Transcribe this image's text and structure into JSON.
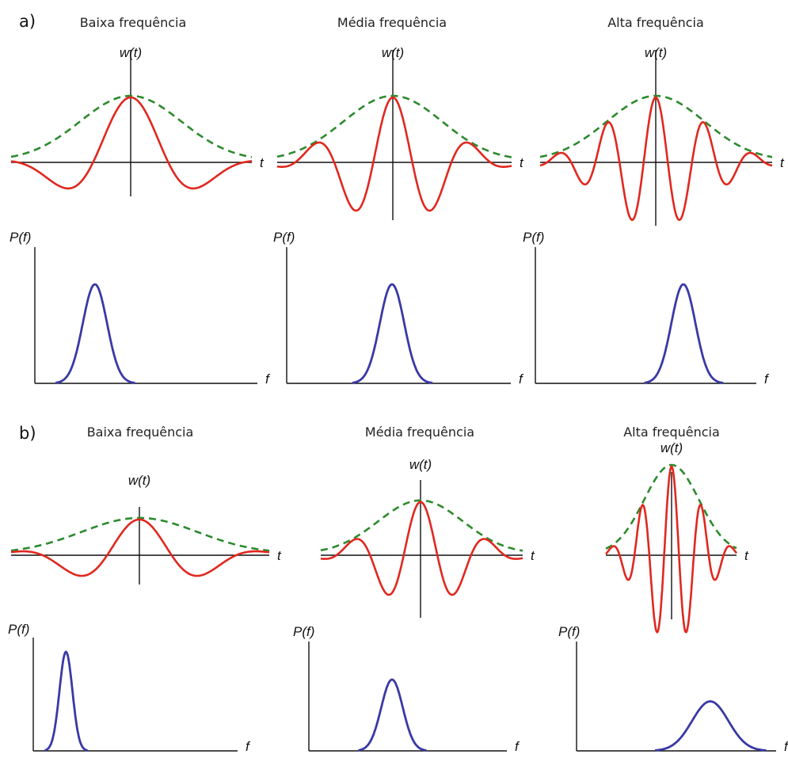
{
  "colors": {
    "wavelet": "#e0281f",
    "envelope": "#2d8a2d",
    "spectrum": "#3a39a6",
    "axis": "#111111"
  },
  "labels": {
    "wt": "w(t)",
    "t": "t",
    "pf": "P(f)",
    "f": "f"
  },
  "parts": [
    {
      "id": "a",
      "label": "a)",
      "panels": [
        {
          "title": "Baixa frequência",
          "cycles": 0.8,
          "env_width": 0.42,
          "amp": 1.0,
          "spectrum_peak": 0.27,
          "spectrum_width": 0.12,
          "spectrum_height": 1.0
        },
        {
          "title": "Média frequência",
          "cycles": 1.5,
          "env_width": 0.42,
          "amp": 1.0,
          "spectrum_peak": 0.47,
          "spectrum_width": 0.12,
          "spectrum_height": 1.0
        },
        {
          "title": "Alta frequência",
          "cycles": 2.4,
          "env_width": 0.42,
          "amp": 1.0,
          "spectrum_peak": 0.67,
          "spectrum_width": 0.12,
          "spectrum_height": 1.0
        }
      ]
    },
    {
      "id": "b",
      "label": "b)",
      "panels": [
        {
          "title": "Baixa frequência",
          "cycles": 1.0,
          "env_width": 0.45,
          "amp": 0.55,
          "spectrum_peak": 0.16,
          "spectrum_width": 0.07,
          "spectrum_height": 1.0
        },
        {
          "title": "Média frequência",
          "cycles": 1.5,
          "env_width": 0.42,
          "amp": 0.82,
          "spectrum_peak": 0.42,
          "spectrum_width": 0.12,
          "spectrum_height": 0.72
        },
        {
          "title": "Alta frequência",
          "cycles": 2.2,
          "env_width": 0.42,
          "amp": 1.0,
          "spectrum_peak": 0.67,
          "spectrum_width": 0.2,
          "spectrum_height": 0.5
        }
      ]
    }
  ]
}
